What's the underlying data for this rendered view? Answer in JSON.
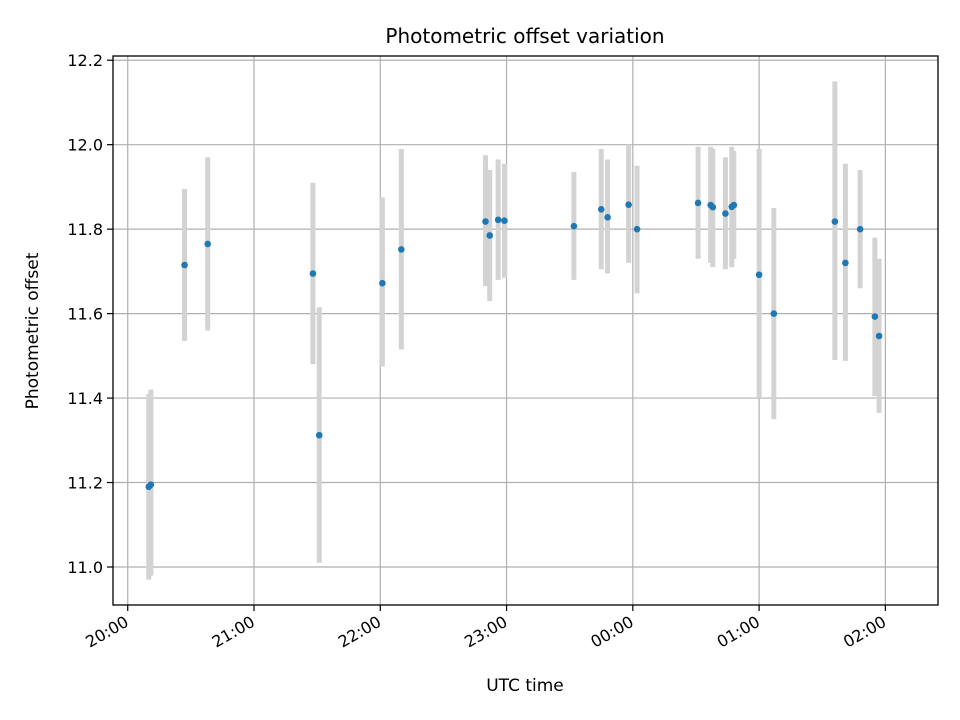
{
  "chart_data": {
    "type": "scatter",
    "title": "Photometric offset variation",
    "xlabel": "UTC time",
    "ylabel": "Photometric offset",
    "x_ticks": [
      "20:00",
      "21:00",
      "22:00",
      "23:00",
      "00:00",
      "01:00",
      "02:00"
    ],
    "x_range": [
      "19:53",
      "02:25"
    ],
    "y_ticks": [
      "11.0",
      "11.2",
      "11.4",
      "11.6",
      "11.8",
      "12.0",
      "12.2"
    ],
    "ylim": [
      10.91,
      12.21
    ],
    "grid": true,
    "marker_color": "#1f77b4",
    "errorbar_color": "#d3d3d3",
    "points": [
      {
        "time": "20:10",
        "y": 11.19,
        "ylo": 10.97,
        "yhi": 11.41
      },
      {
        "time": "20:11",
        "y": 11.195,
        "ylo": 10.98,
        "yhi": 11.42
      },
      {
        "time": "20:27",
        "y": 11.715,
        "ylo": 11.535,
        "yhi": 11.895
      },
      {
        "time": "20:38",
        "y": 11.765,
        "ylo": 11.56,
        "yhi": 11.97
      },
      {
        "time": "21:28",
        "y": 11.695,
        "ylo": 11.48,
        "yhi": 11.91
      },
      {
        "time": "21:31",
        "y": 11.312,
        "ylo": 11.01,
        "yhi": 11.615
      },
      {
        "time": "22:01",
        "y": 11.672,
        "ylo": 11.475,
        "yhi": 11.875
      },
      {
        "time": "22:10",
        "y": 11.752,
        "ylo": 11.515,
        "yhi": 11.99
      },
      {
        "time": "22:50",
        "y": 11.818,
        "ylo": 11.665,
        "yhi": 11.975
      },
      {
        "time": "22:52",
        "y": 11.785,
        "ylo": 11.63,
        "yhi": 11.94
      },
      {
        "time": "22:56",
        "y": 11.822,
        "ylo": 11.68,
        "yhi": 11.965
      },
      {
        "time": "22:59",
        "y": 11.82,
        "ylo": 11.685,
        "yhi": 11.955
      },
      {
        "time": "23:32",
        "y": 11.807,
        "ylo": 11.68,
        "yhi": 11.935
      },
      {
        "time": "23:45",
        "y": 11.847,
        "ylo": 11.705,
        "yhi": 11.99
      },
      {
        "time": "23:48",
        "y": 11.828,
        "ylo": 11.695,
        "yhi": 11.965
      },
      {
        "time": "23:58",
        "y": 11.858,
        "ylo": 11.72,
        "yhi": 12.0
      },
      {
        "time": "00:02",
        "y": 11.8,
        "ylo": 11.648,
        "yhi": 11.95
      },
      {
        "time": "00:31",
        "y": 11.862,
        "ylo": 11.73,
        "yhi": 11.995
      },
      {
        "time": "00:37",
        "y": 11.857,
        "ylo": 11.72,
        "yhi": 11.995
      },
      {
        "time": "00:38",
        "y": 11.852,
        "ylo": 11.71,
        "yhi": 11.99
      },
      {
        "time": "00:44",
        "y": 11.837,
        "ylo": 11.705,
        "yhi": 11.97
      },
      {
        "time": "00:47",
        "y": 11.853,
        "ylo": 11.71,
        "yhi": 11.995
      },
      {
        "time": "00:48",
        "y": 11.857,
        "ylo": 11.73,
        "yhi": 11.985
      },
      {
        "time": "01:00",
        "y": 11.692,
        "ylo": 11.4,
        "yhi": 11.99
      },
      {
        "time": "01:07",
        "y": 11.6,
        "ylo": 11.35,
        "yhi": 11.85
      },
      {
        "time": "01:36",
        "y": 11.818,
        "ylo": 11.49,
        "yhi": 12.15
      },
      {
        "time": "01:41",
        "y": 11.72,
        "ylo": 11.488,
        "yhi": 11.955
      },
      {
        "time": "01:48",
        "y": 11.8,
        "ylo": 11.66,
        "yhi": 11.94
      },
      {
        "time": "01:55",
        "y": 11.593,
        "ylo": 11.405,
        "yhi": 11.78
      },
      {
        "time": "01:57",
        "y": 11.547,
        "ylo": 11.365,
        "yhi": 11.73
      }
    ]
  }
}
